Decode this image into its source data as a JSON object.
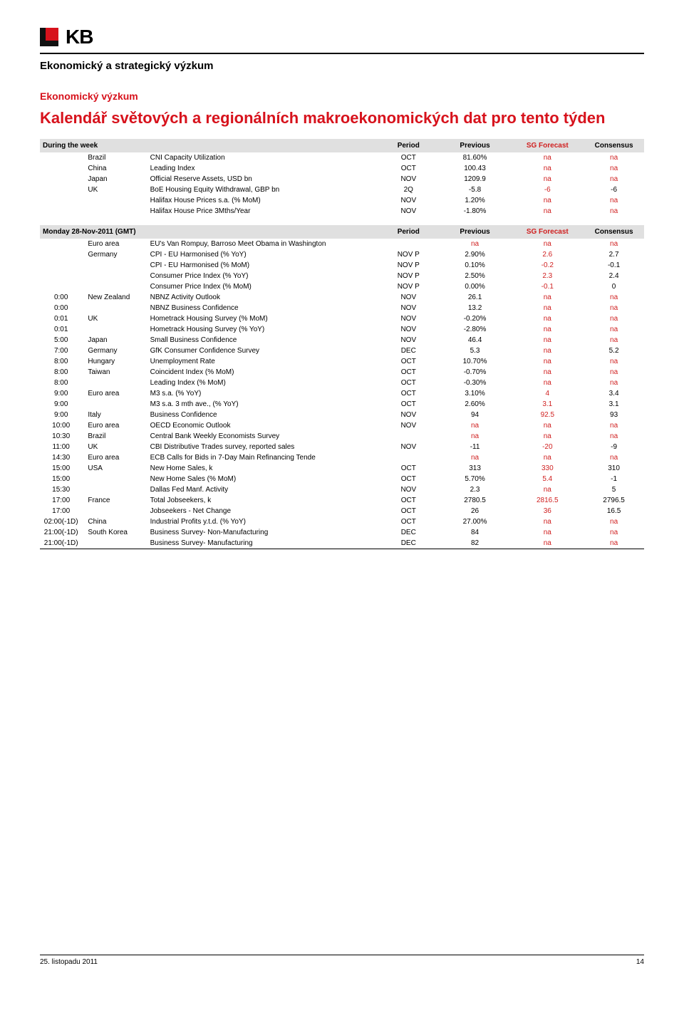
{
  "logo_text": "KB",
  "dept_line": "Ekonomický a strategický výzkum",
  "subheading": "Ekonomický výzkum",
  "page_title": "Kalendář světových a regionálních makroekonomických dat pro tento týden",
  "table1": {
    "headers": {
      "left": "During the week",
      "period": "Period",
      "previous": "Previous",
      "sg": "SG Forecast",
      "cons": "Consensus"
    },
    "rows": [
      {
        "time": "",
        "region": "Brazil",
        "ind": "CNI Capacity Utilization",
        "per": "OCT",
        "prev": "81.60%",
        "sg": "na",
        "cons": "na"
      },
      {
        "time": "",
        "region": "China",
        "ind": "Leading Index",
        "per": "OCT",
        "prev": "100.43",
        "sg": "na",
        "cons": "na"
      },
      {
        "time": "",
        "region": "Japan",
        "ind": "Official Reserve Assets, USD bn",
        "per": "NOV",
        "prev": "1209.9",
        "sg": "na",
        "cons": "na"
      },
      {
        "time": "",
        "region": "UK",
        "ind": "BoE Housing Equity Withdrawal, GBP bn",
        "per": "2Q",
        "prev": "-5.8",
        "sg": "-6",
        "cons": "-6"
      },
      {
        "time": "",
        "region": "",
        "ind": "Halifax House Prices s.a. (% MoM)",
        "per": "NOV",
        "prev": "1.20%",
        "sg": "na",
        "cons": "na"
      },
      {
        "time": "",
        "region": "",
        "ind": "Halifax House Price 3Mths/Year",
        "per": "NOV",
        "prev": "-1.80%",
        "sg": "na",
        "cons": "na"
      }
    ]
  },
  "table2": {
    "headers": {
      "left": "Monday 28-Nov-2011 (GMT)",
      "period": "Period",
      "previous": "Previous",
      "sg": "SG Forecast",
      "cons": "Consensus"
    },
    "rows": [
      {
        "time": "",
        "region": "Euro area",
        "ind": "EU's Van Rompuy, Barroso Meet Obama in Washington",
        "per": "",
        "prev": "na",
        "sg": "na",
        "cons": "na"
      },
      {
        "time": "",
        "region": "Germany",
        "ind": "CPI - EU Harmonised (% YoY)",
        "per": "NOV P",
        "prev": "2.90%",
        "sg": "2.6",
        "cons": "2.7"
      },
      {
        "time": "",
        "region": "",
        "ind": "CPI - EU Harmonised (% MoM)",
        "per": "NOV P",
        "prev": "0.10%",
        "sg": "-0.2",
        "cons": "-0.1"
      },
      {
        "time": "",
        "region": "",
        "ind": "Consumer Price Index (% YoY)",
        "per": "NOV P",
        "prev": "2.50%",
        "sg": "2.3",
        "cons": "2.4"
      },
      {
        "time": "",
        "region": "",
        "ind": "Consumer Price Index (% MoM)",
        "per": "NOV P",
        "prev": "0.00%",
        "sg": "-0.1",
        "cons": "0"
      },
      {
        "time": "0:00",
        "region": "New Zealand",
        "ind": "NBNZ Activity Outlook",
        "per": "NOV",
        "prev": "26.1",
        "sg": "na",
        "cons": "na"
      },
      {
        "time": "0:00",
        "region": "",
        "ind": "NBNZ Business Confidence",
        "per": "NOV",
        "prev": "13.2",
        "sg": "na",
        "cons": "na"
      },
      {
        "time": "0:01",
        "region": "UK",
        "ind": "Hometrack Housing Survey (% MoM)",
        "per": "NOV",
        "prev": "-0.20%",
        "sg": "na",
        "cons": "na"
      },
      {
        "time": "0:01",
        "region": "",
        "ind": "Hometrack Housing Survey (% YoY)",
        "per": "NOV",
        "prev": "-2.80%",
        "sg": "na",
        "cons": "na"
      },
      {
        "time": "5:00",
        "region": "Japan",
        "ind": "Small Business Confidence",
        "per": "NOV",
        "prev": "46.4",
        "sg": "na",
        "cons": "na"
      },
      {
        "time": "7:00",
        "region": "Germany",
        "ind": "GfK Consumer Confidence Survey",
        "per": "DEC",
        "prev": "5.3",
        "sg": "na",
        "cons": "5.2"
      },
      {
        "time": "8:00",
        "region": "Hungary",
        "ind": "Unemployment Rate",
        "per": "OCT",
        "prev": "10.70%",
        "sg": "na",
        "cons": "na"
      },
      {
        "time": "8:00",
        "region": "Taiwan",
        "ind": "Coincident Index (% MoM)",
        "per": "OCT",
        "prev": "-0.70%",
        "sg": "na",
        "cons": "na"
      },
      {
        "time": "8:00",
        "region": "",
        "ind": "Leading Index (% MoM)",
        "per": "OCT",
        "prev": "-0.30%",
        "sg": "na",
        "cons": "na"
      },
      {
        "time": "9:00",
        "region": "Euro area",
        "ind": "M3 s.a. (% YoY)",
        "per": "OCT",
        "prev": "3.10%",
        "sg": "4",
        "cons": "3.4"
      },
      {
        "time": "9:00",
        "region": "",
        "ind": "M3 s.a. 3 mth ave., (% YoY)",
        "per": "OCT",
        "prev": "2.60%",
        "sg": "3.1",
        "cons": "3.1"
      },
      {
        "time": "9:00",
        "region": "Italy",
        "ind": "Business Confidence",
        "per": "NOV",
        "prev": "94",
        "sg": "92.5",
        "cons": "93"
      },
      {
        "time": "10:00",
        "region": "Euro area",
        "ind": "OECD Economic Outlook",
        "per": "NOV",
        "prev": "na",
        "sg": "na",
        "cons": "na"
      },
      {
        "time": "10:30",
        "region": "Brazil",
        "ind": "Central Bank Weekly Economists Survey",
        "per": "",
        "prev": "na",
        "sg": "na",
        "cons": "na"
      },
      {
        "time": "11:00",
        "region": "UK",
        "ind": "CBI Distributive Trades survey, reported sales",
        "per": "NOV",
        "prev": "-11",
        "sg": "-20",
        "cons": "-9"
      },
      {
        "time": "14:30",
        "region": "Euro area",
        "ind": "ECB Calls for Bids in 7-Day Main Refinancing Tende",
        "per": "",
        "prev": "na",
        "sg": "na",
        "cons": "na"
      },
      {
        "time": "15:00",
        "region": "USA",
        "ind": "New Home Sales, k",
        "per": "OCT",
        "prev": "313",
        "sg": "330",
        "cons": "310"
      },
      {
        "time": "15:00",
        "region": "",
        "ind": "New Home Sales (% MoM)",
        "per": "OCT",
        "prev": "5.70%",
        "sg": "5.4",
        "cons": "-1"
      },
      {
        "time": "15:30",
        "region": "",
        "ind": "Dallas Fed Manf. Activity",
        "per": "NOV",
        "prev": "2.3",
        "sg": "na",
        "cons": "5"
      },
      {
        "time": "17:00",
        "region": "France",
        "ind": "Total Jobseekers, k",
        "per": "OCT",
        "prev": "2780.5",
        "sg": "2816.5",
        "cons": "2796.5"
      },
      {
        "time": "17:00",
        "region": "",
        "ind": "Jobseekers - Net Change",
        "per": "OCT",
        "prev": "26",
        "sg": "36",
        "cons": "16.5"
      },
      {
        "time": "02:00(-1D)",
        "region": "China",
        "ind": "Industrial Profits y.t.d. (% YoY)",
        "per": "OCT",
        "prev": "27.00%",
        "sg": "na",
        "cons": "na"
      },
      {
        "time": "21:00(-1D)",
        "region": "South Korea",
        "ind": "Business Survey- Non-Manufacturing",
        "per": "DEC",
        "prev": "84",
        "sg": "na",
        "cons": "na"
      },
      {
        "time": "21:00(-1D)",
        "region": "",
        "ind": "Business Survey- Manufacturing",
        "per": "DEC",
        "prev": "82",
        "sg": "na",
        "cons": "na"
      }
    ]
  },
  "footer": {
    "date": "25. listopadu 2011",
    "page": "14"
  }
}
